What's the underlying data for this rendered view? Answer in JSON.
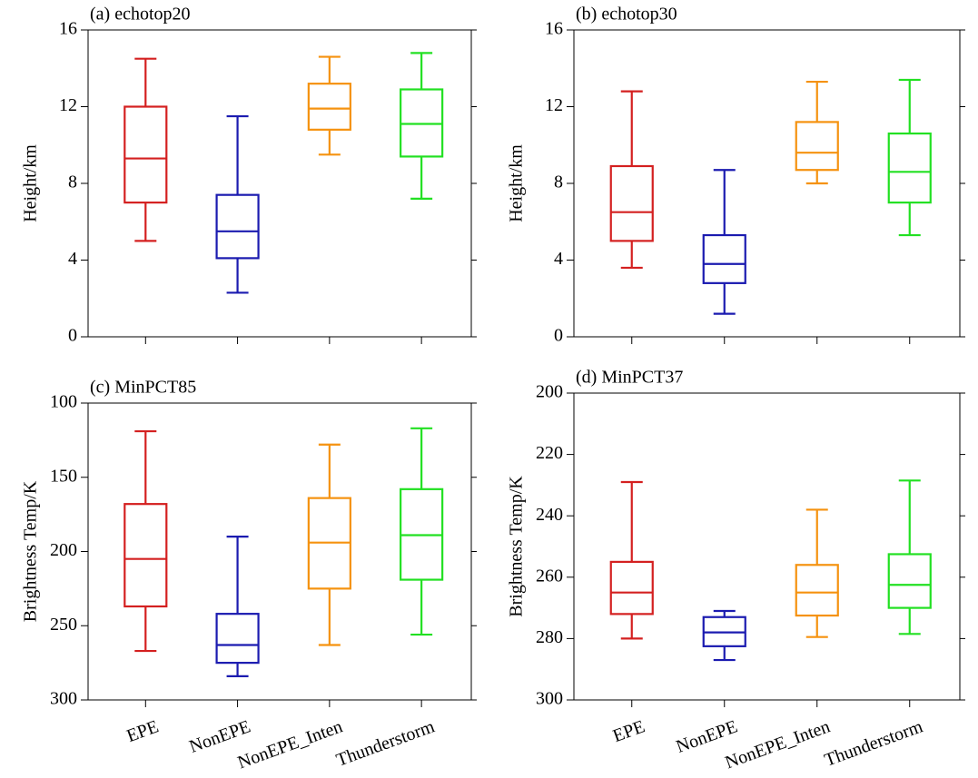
{
  "chart_data": [
    {
      "type": "box",
      "title": "(a) echotop20",
      "ylabel": "Height/km",
      "ylim": [
        0,
        16
      ],
      "yticks": [
        0,
        4,
        8,
        12,
        16
      ],
      "inverted": false,
      "colors": [
        "#d42020",
        "#1b1bb0",
        "#f5920f",
        "#22e022"
      ],
      "boxes": [
        {
          "low": 5.0,
          "q1": 7.0,
          "median": 9.3,
          "q3": 12.0,
          "high": 14.5
        },
        {
          "low": 2.3,
          "q1": 4.1,
          "median": 5.5,
          "q3": 7.4,
          "high": 11.5
        },
        {
          "low": 9.5,
          "q1": 10.8,
          "median": 11.9,
          "q3": 13.2,
          "high": 14.6
        },
        {
          "low": 7.2,
          "q1": 9.4,
          "median": 11.1,
          "q3": 12.9,
          "high": 14.8
        }
      ]
    },
    {
      "type": "box",
      "title": "(b) echotop30",
      "ylabel": "Height/km",
      "ylim": [
        0,
        16
      ],
      "yticks": [
        0,
        4,
        8,
        12,
        16
      ],
      "inverted": false,
      "colors": [
        "#d42020",
        "#1b1bb0",
        "#f5920f",
        "#22e022"
      ],
      "boxes": [
        {
          "low": 3.6,
          "q1": 5.0,
          "median": 6.5,
          "q3": 8.9,
          "high": 12.8
        },
        {
          "low": 1.2,
          "q1": 2.8,
          "median": 3.8,
          "q3": 5.3,
          "high": 8.7
        },
        {
          "low": 8.0,
          "q1": 8.7,
          "median": 9.6,
          "q3": 11.2,
          "high": 13.3
        },
        {
          "low": 5.3,
          "q1": 7.0,
          "median": 8.6,
          "q3": 10.6,
          "high": 13.4
        }
      ]
    },
    {
      "type": "box",
      "title": "(c) MinPCT85",
      "ylabel": "Brightness Temp/K",
      "ylim": [
        100,
        300
      ],
      "yticks": [
        100,
        150,
        200,
        250,
        300
      ],
      "inverted": true,
      "colors": [
        "#d42020",
        "#1b1bb0",
        "#f5920f",
        "#22e022"
      ],
      "categories": [
        "EPE",
        "NonEPE",
        "NonEPE_Inten",
        "Thunderstorm"
      ],
      "boxes": [
        {
          "low": 119,
          "q1": 168,
          "median": 205,
          "q3": 237,
          "high": 267
        },
        {
          "low": 190,
          "q1": 242,
          "median": 263,
          "q3": 275,
          "high": 284
        },
        {
          "low": 128,
          "q1": 164,
          "median": 194,
          "q3": 225,
          "high": 263
        },
        {
          "low": 117,
          "q1": 158,
          "median": 189,
          "q3": 219,
          "high": 256
        }
      ]
    },
    {
      "type": "box",
      "title": "(d) MinPCT37",
      "ylabel": "Brightness Temp/K",
      "ylim": [
        200,
        300
      ],
      "yticks": [
        200,
        220,
        240,
        260,
        280,
        300
      ],
      "inverted": true,
      "colors": [
        "#d42020",
        "#1b1bb0",
        "#f5920f",
        "#22e022"
      ],
      "categories": [
        "EPE",
        "NonEPE",
        "NonEPE_Inten",
        "Thunderstorm"
      ],
      "boxes": [
        {
          "low": 229,
          "q1": 255,
          "median": 265,
          "q3": 272,
          "high": 280
        },
        {
          "low": 271,
          "q1": 273,
          "median": 278,
          "q3": 282.5,
          "high": 287
        },
        {
          "low": 238,
          "q1": 256,
          "median": 265,
          "q3": 272.5,
          "high": 279.5
        },
        {
          "low": 228.5,
          "q1": 252.5,
          "median": 262.5,
          "q3": 270,
          "high": 278.5
        }
      ]
    }
  ]
}
